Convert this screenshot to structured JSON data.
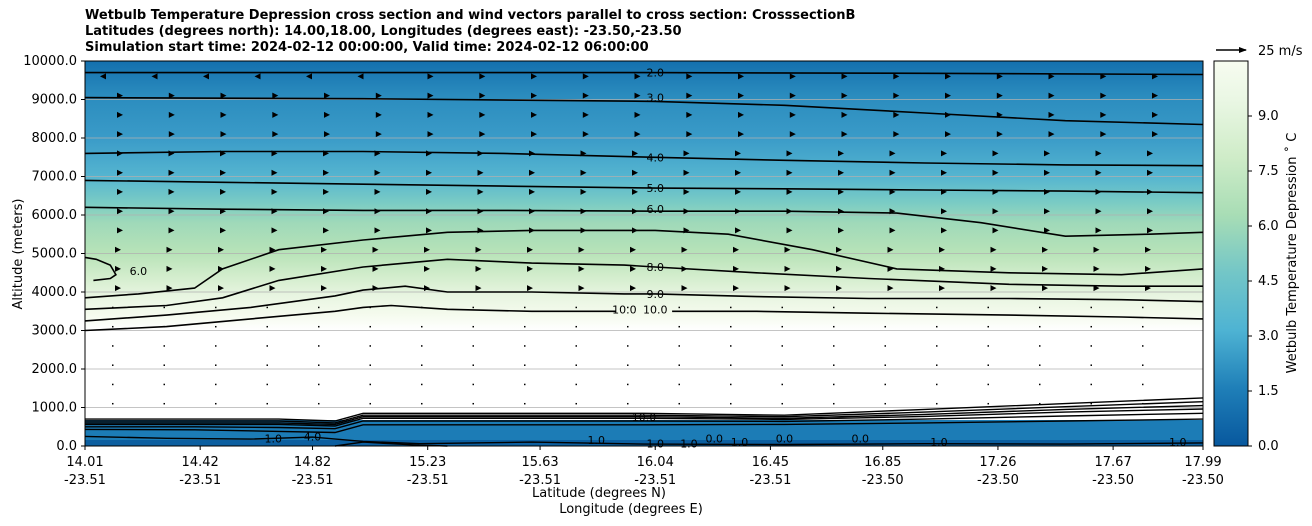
{
  "chart_data": {
    "type": "heatmap",
    "title_lines": [
      "Wetbulb Temperature Depression cross section and wind vectors parallel to cross section: CrosssectionB",
      "Latitudes (degrees north): 14.00,18.00, Longitudes (degrees east): -23.50,-23.50",
      "Simulation start time: 2024-02-12 00:00:00, Valid time: 2024-02-12 06:00:00"
    ],
    "ylabel": "Altitude (meters)",
    "xlabel_lat": "Latitude (degrees N)",
    "xlabel_lon": "Longitude (degrees E)",
    "ylim": [
      0,
      10000
    ],
    "y_ticks": [
      "0.0",
      "1000.0",
      "2000.0",
      "3000.0",
      "4000.0",
      "5000.0",
      "6000.0",
      "7000.0",
      "8000.0",
      "9000.0",
      "10000.0"
    ],
    "y_tick_values": [
      0,
      1000,
      2000,
      3000,
      4000,
      5000,
      6000,
      7000,
      8000,
      9000,
      10000
    ],
    "xlim": [
      14.01,
      17.99
    ],
    "x_ticks": [
      {
        "lat": "14.01",
        "lon": "-23.51",
        "value": 14.01
      },
      {
        "lat": "14.42",
        "lon": "-23.51",
        "value": 14.42
      },
      {
        "lat": "14.82",
        "lon": "-23.51",
        "value": 14.82
      },
      {
        "lat": "15.23",
        "lon": "-23.51",
        "value": 15.23
      },
      {
        "lat": "15.63",
        "lon": "-23.51",
        "value": 15.63
      },
      {
        "lat": "16.04",
        "lon": "-23.51",
        "value": 16.04
      },
      {
        "lat": "16.45",
        "lon": "-23.51",
        "value": 16.45
      },
      {
        "lat": "16.85",
        "lon": "-23.50",
        "value": 16.85
      },
      {
        "lat": "17.26",
        "lon": "-23.50",
        "value": 17.26
      },
      {
        "lat": "17.67",
        "lon": "-23.50",
        "value": 17.67
      },
      {
        "lat": "17.99",
        "lon": "-23.50",
        "value": 17.99
      }
    ],
    "colorbar": {
      "label": "Wetbulb Temperature Depression ˚ C",
      "range": [
        0,
        10.5
      ],
      "ticks": [
        "0.0",
        "1.5",
        "3.0",
        "4.5",
        "6.0",
        "7.5",
        "9.0"
      ],
      "tick_values": [
        0,
        1.5,
        3.0,
        4.5,
        6.0,
        7.5,
        9.0
      ],
      "colors": [
        "#08589e",
        "#0c68a8",
        "#1978b4",
        "#2b8cbe",
        "#3a9bc8",
        "#4eb3d3",
        "#63bfd3",
        "#7bccc4",
        "#8fd3bf",
        "#a8ddb5",
        "#b8e3b8",
        "#ccebc5",
        "#d9f0d3",
        "#e7f5e0",
        "#f0f9e8",
        "#f7fcf0"
      ]
    },
    "wind_reference": "25 m/s",
    "contour_labels": [
      {
        "text": "2.0",
        "x": 16.04,
        "y": 9700
      },
      {
        "text": "3.0",
        "x": 16.04,
        "y": 9050
      },
      {
        "text": "4.0",
        "x": 16.04,
        "y": 7500
      },
      {
        "text": "5.0",
        "x": 16.04,
        "y": 6700
      },
      {
        "text": "6.0",
        "x": 16.04,
        "y": 6150
      },
      {
        "text": "8.0",
        "x": 16.04,
        "y": 4650
      },
      {
        "text": "9.0",
        "x": 16.04,
        "y": 3950
      },
      {
        "text": "10.0",
        "x": 15.93,
        "y": 3550
      },
      {
        "text": "10.0",
        "x": 16.04,
        "y": 3550
      },
      {
        "text": "6.0",
        "x": 14.2,
        "y": 4550
      },
      {
        "text": "4.0",
        "x": 14.82,
        "y": 250
      },
      {
        "text": "1.0",
        "x": 14.68,
        "y": 200
      },
      {
        "text": "1.0",
        "x": 15.83,
        "y": 150
      },
      {
        "text": "1.0",
        "x": 16.04,
        "y": 60
      },
      {
        "text": "1.0",
        "x": 16.16,
        "y": 60
      },
      {
        "text": "0.0",
        "x": 16.25,
        "y": 200
      },
      {
        "text": "1.0",
        "x": 16.34,
        "y": 100
      },
      {
        "text": "0.0",
        "x": 16.5,
        "y": 200
      },
      {
        "text": "0.0",
        "x": 16.77,
        "y": 200
      },
      {
        "text": "1.0",
        "x": 17.05,
        "y": 100
      },
      {
        "text": "1.0",
        "x": 17.9,
        "y": 100
      },
      {
        "text": "10.0",
        "x": 16.0,
        "y": 750
      }
    ],
    "contour_lines": [
      {
        "level": "2.0",
        "x": [
          14.01,
          15.0,
          16.0,
          17.0,
          17.99
        ],
        "y": [
          9700,
          9700,
          9700,
          9680,
          9650
        ]
      },
      {
        "level": "3.0",
        "x": [
          14.01,
          15.0,
          16.04,
          16.5,
          17.0,
          17.5,
          17.99
        ],
        "y": [
          9050,
          9020,
          8950,
          8850,
          8650,
          8450,
          8350
        ]
      },
      {
        "level": "4.0",
        "x": [
          14.01,
          14.5,
          15.0,
          15.5,
          16.04,
          16.5,
          17.0,
          17.5,
          17.99
        ],
        "y": [
          7600,
          7650,
          7650,
          7600,
          7500,
          7420,
          7350,
          7300,
          7280
        ]
      },
      {
        "level": "5.0",
        "x": [
          14.01,
          14.5,
          15.0,
          15.5,
          16.04,
          16.5,
          17.0,
          17.5,
          17.99
        ],
        "y": [
          6900,
          6850,
          6800,
          6750,
          6700,
          6680,
          6650,
          6620,
          6580
        ]
      },
      {
        "level": "6.0",
        "x": [
          14.01,
          14.5,
          15.0,
          15.5,
          16.04,
          16.5,
          16.9,
          17.2,
          17.5,
          17.8,
          17.99
        ],
        "y": [
          6200,
          6150,
          6120,
          6120,
          6100,
          6100,
          6050,
          5800,
          5450,
          5500,
          5550
        ]
      },
      {
        "level": "6.0",
        "x": [
          14.01,
          14.05,
          14.1,
          14.12,
          14.1,
          14.04
        ],
        "y": [
          4900,
          4850,
          4700,
          4450,
          4350,
          4300
        ]
      },
      {
        "level": "7.0",
        "x": [
          14.01,
          14.2,
          14.4,
          14.5,
          14.7,
          15.0,
          15.3,
          15.6,
          16.04,
          16.3,
          16.6,
          16.9,
          17.3,
          17.7,
          17.99
        ],
        "y": [
          3850,
          3950,
          4100,
          4600,
          5100,
          5350,
          5550,
          5600,
          5600,
          5500,
          5100,
          4600,
          4500,
          4450,
          4600
        ]
      },
      {
        "level": "8.0",
        "x": [
          14.01,
          14.3,
          14.5,
          14.7,
          15.0,
          15.3,
          15.6,
          15.93,
          16.04,
          16.4,
          16.8,
          17.3,
          17.7,
          17.99
        ],
        "y": [
          3550,
          3650,
          3850,
          4300,
          4650,
          4850,
          4750,
          4700,
          4650,
          4500,
          4350,
          4200,
          4150,
          4150
        ]
      },
      {
        "level": "9.0",
        "x": [
          14.01,
          14.3,
          14.6,
          14.9,
          15.0,
          15.15,
          15.3,
          15.6,
          15.93,
          16.04,
          16.4,
          16.8,
          17.3,
          17.7,
          17.99
        ],
        "y": [
          3250,
          3400,
          3600,
          3900,
          4050,
          4150,
          4000,
          4000,
          3950,
          3950,
          3880,
          3830,
          3830,
          3800,
          3750
        ]
      },
      {
        "level": "10.0",
        "x": [
          14.01,
          14.3,
          14.6,
          14.9,
          15.0,
          15.1,
          15.3,
          15.6,
          15.9
        ],
        "y": [
          3000,
          3100,
          3300,
          3500,
          3600,
          3650,
          3550,
          3500,
          3500
        ]
      },
      {
        "level": "10.0",
        "x": [
          16.1,
          16.4,
          16.8,
          17.3,
          17.7,
          17.99
        ],
        "y": [
          3500,
          3500,
          3450,
          3400,
          3350,
          3300
        ]
      }
    ]
  }
}
